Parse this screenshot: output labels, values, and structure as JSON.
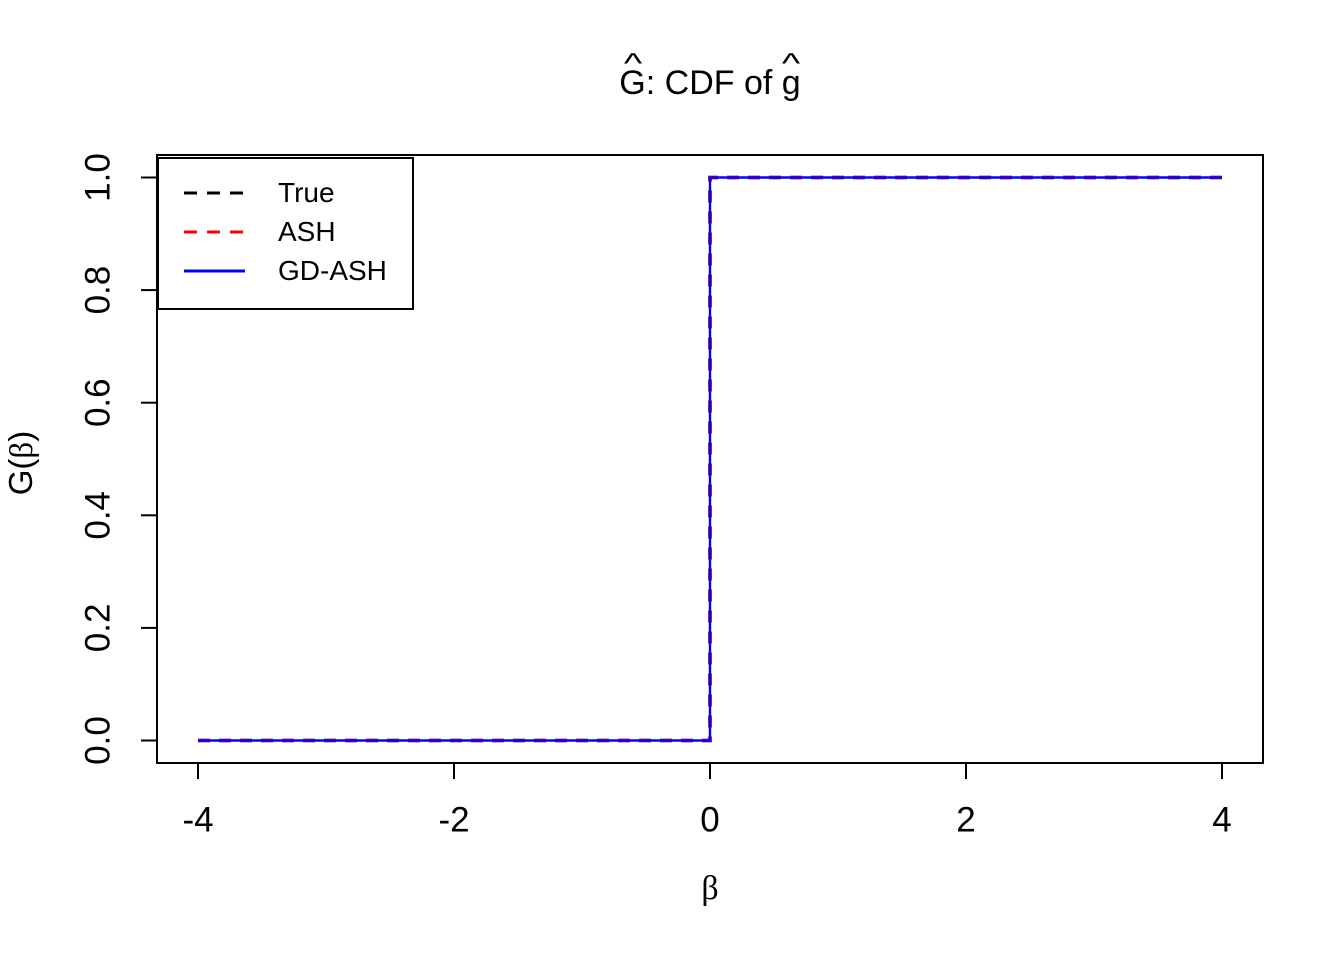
{
  "title": {
    "hat": "^",
    "G": "G",
    "mid": ": CDF of ",
    "g": "g"
  },
  "axes": {
    "x_label_beta": "β",
    "y_label": {
      "hat": "^",
      "letter": "G",
      "open": "(",
      "beta": "β",
      "close": ")"
    }
  },
  "legend": {
    "items": [
      {
        "label": "True",
        "color": "#000000",
        "dasharray": "13 10"
      },
      {
        "label": "ASH",
        "color": "#ff0000",
        "dasharray": "13 10"
      },
      {
        "label": "GD-ASH",
        "color": "#0000ff",
        "dasharray": "none"
      }
    ]
  },
  "chart_data": {
    "type": "line",
    "subtype": "step-cdf",
    "title": "Ĝ: CDF of ĝ",
    "xlabel": "β",
    "ylabel": "Ĝ(β)",
    "xlim": [
      -4,
      4
    ],
    "ylim": [
      0,
      1
    ],
    "grid": false,
    "legend_position": "topleft",
    "x_ticks": [
      -4,
      -2,
      0,
      2,
      4
    ],
    "x_tick_labels": [
      "-4",
      "-2",
      "0",
      "2",
      "4"
    ],
    "y_ticks": [
      0,
      0.2,
      0.4,
      0.6,
      0.8,
      1.0
    ],
    "y_tick_labels": [
      "0.0",
      "0.2",
      "0.4",
      "0.6",
      "0.8",
      "1.0"
    ],
    "series": [
      {
        "name": "True",
        "color": "#000000",
        "linetype": "dashed",
        "dasharray": "12 9",
        "points": [
          [
            -4,
            0
          ],
          [
            0,
            0
          ],
          [
            0,
            1
          ],
          [
            4,
            1
          ]
        ]
      },
      {
        "name": "ASH",
        "color": "#ff0000",
        "linetype": "dashed",
        "dasharray": "12 9",
        "points": [
          [
            -4,
            0
          ],
          [
            0,
            0
          ],
          [
            0,
            1
          ],
          [
            4,
            1
          ]
        ]
      },
      {
        "name": "GD-ASH",
        "color": "#0000ff",
        "linetype": "solid",
        "dasharray": "",
        "points": [
          [
            -4,
            0
          ],
          [
            0,
            0
          ],
          [
            0,
            1
          ],
          [
            4,
            1
          ]
        ]
      }
    ]
  }
}
